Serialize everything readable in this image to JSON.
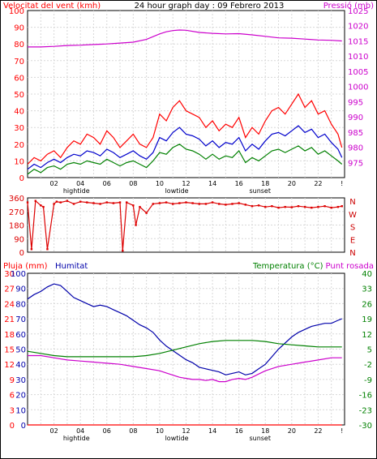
{
  "page_title": "24 hour graph day : 09 Febrero 2013",
  "chart_data": [
    {
      "id": "wind_pressure",
      "type": "line",
      "title": "24 hour graph day : 09 Febrero 2013",
      "left_axis_label": "Velocitat del vent (kmh)",
      "right_axis_label": "Pressió (mb)",
      "left_ylim": [
        0,
        100
      ],
      "left_ticks": [
        "0",
        "10",
        "20",
        "30",
        "40",
        "50",
        "60",
        "70",
        "80",
        "90",
        "100"
      ],
      "right_ylim": [
        970,
        1025
      ],
      "right_ticks": [
        "975",
        "980",
        "985",
        "990",
        "995",
        "1000",
        "1005",
        "1010",
        "1015",
        "1020",
        "1025"
      ],
      "x_ticks": [
        "02",
        "04",
        "06",
        "08",
        "10",
        "12",
        "14",
        "16",
        "18",
        "20",
        "22",
        "!"
      ],
      "event_labels": [
        {
          "hour": 3.7,
          "label": "hightide"
        },
        {
          "hour": 11.3,
          "label": "lowtide"
        },
        {
          "hour": 17.6,
          "label": "sunset"
        }
      ],
      "grid": true,
      "colors": {
        "gust": "#ff0000",
        "avg": "#0000cc",
        "min": "#008000",
        "pressure": "#cc00cc"
      },
      "series": [
        {
          "key": "pressure",
          "axis": "right",
          "x": [
            0,
            1,
            2,
            3,
            4,
            5,
            6,
            7,
            8,
            9,
            10,
            10.5,
            11,
            11.5,
            12,
            13,
            14,
            15,
            16,
            17,
            18,
            19,
            20,
            21,
            22,
            23,
            23.8
          ],
          "values": [
            1013,
            1013,
            1013.2,
            1013.5,
            1013.6,
            1013.8,
            1014,
            1014.3,
            1014.6,
            1015.5,
            1017.3,
            1018,
            1018.4,
            1018.6,
            1018.5,
            1017.8,
            1017.5,
            1017.3,
            1017.4,
            1017,
            1016.5,
            1016,
            1015.9,
            1015.6,
            1015.3,
            1015.2,
            1015
          ]
        },
        {
          "key": "gust",
          "axis": "left",
          "x": [
            0,
            0.5,
            1,
            1.5,
            2,
            2.5,
            3,
            3.5,
            4,
            4.5,
            5,
            5.5,
            6,
            6.5,
            7,
            7.5,
            8,
            8.5,
            9,
            9.5,
            10,
            10.5,
            11,
            11.5,
            12,
            12.5,
            13,
            13.5,
            14,
            14.5,
            15,
            15.5,
            16,
            16.5,
            17,
            17.5,
            18,
            18.5,
            19,
            19.5,
            20,
            20.5,
            21,
            21.5,
            22,
            22.5,
            23,
            23.5,
            23.8
          ],
          "values": [
            8,
            12,
            10,
            14,
            16,
            12,
            18,
            22,
            20,
            26,
            24,
            20,
            28,
            24,
            18,
            22,
            26,
            20,
            18,
            24,
            38,
            34,
            42,
            46,
            40,
            38,
            36,
            30,
            34,
            28,
            32,
            30,
            36,
            24,
            30,
            26,
            34,
            40,
            42,
            38,
            44,
            50,
            42,
            46,
            38,
            40,
            32,
            26,
            18
          ]
        },
        {
          "key": "avg",
          "axis": "left",
          "x": [
            0,
            0.5,
            1,
            1.5,
            2,
            2.5,
            3,
            3.5,
            4,
            4.5,
            5,
            5.5,
            6,
            6.5,
            7,
            7.5,
            8,
            8.5,
            9,
            9.5,
            10,
            10.5,
            11,
            11.5,
            12,
            12.5,
            13,
            13.5,
            14,
            14.5,
            15,
            15.5,
            16,
            16.5,
            17,
            17.5,
            18,
            18.5,
            19,
            19.5,
            20,
            20.5,
            21,
            21.5,
            22,
            22.5,
            23,
            23.5,
            23.8
          ],
          "values": [
            5,
            8,
            6,
            9,
            11,
            9,
            12,
            14,
            13,
            16,
            15,
            13,
            17,
            15,
            12,
            14,
            16,
            13,
            11,
            15,
            24,
            22,
            27,
            30,
            26,
            25,
            23,
            19,
            22,
            18,
            21,
            20,
            24,
            16,
            20,
            17,
            22,
            26,
            27,
            25,
            28,
            31,
            27,
            29,
            24,
            26,
            21,
            17,
            12
          ]
        },
        {
          "key": "min",
          "axis": "left",
          "x": [
            0,
            0.5,
            1,
            1.5,
            2,
            2.5,
            3,
            3.5,
            4,
            4.5,
            5,
            5.5,
            6,
            6.5,
            7,
            7.5,
            8,
            8.5,
            9,
            9.5,
            10,
            10.5,
            11,
            11.5,
            12,
            12.5,
            13,
            13.5,
            14,
            14.5,
            15,
            15.5,
            16,
            16.5,
            17,
            17.5,
            18,
            18.5,
            19,
            19.5,
            20,
            20.5,
            21,
            21.5,
            22,
            22.5,
            23,
            23.5,
            23.8
          ],
          "values": [
            2,
            5,
            3,
            6,
            7,
            5,
            8,
            9,
            8,
            10,
            9,
            8,
            11,
            9,
            7,
            9,
            10,
            8,
            6,
            10,
            15,
            14,
            18,
            20,
            17,
            16,
            14,
            11,
            14,
            11,
            13,
            12,
            16,
            9,
            12,
            10,
            13,
            16,
            17,
            15,
            17,
            19,
            16,
            18,
            14,
            16,
            13,
            10,
            8
          ]
        }
      ]
    },
    {
      "id": "wind_direction",
      "type": "line",
      "left_ylim": [
        0,
        360
      ],
      "left_ticks": [
        "0",
        "90",
        "180",
        "270",
        "360"
      ],
      "right_labels": [
        "N",
        "W",
        "S",
        "E",
        "N"
      ],
      "grid": true,
      "colors": {
        "direction": "#dd0000"
      },
      "series": [
        {
          "key": "direction",
          "x": [
            0,
            0.3,
            0.6,
            1,
            1.2,
            1.5,
            2,
            2.2,
            2.5,
            3,
            3.5,
            4,
            4.5,
            5,
            5.5,
            6,
            6.5,
            7,
            7.2,
            7.5,
            8,
            8.2,
            8.5,
            9,
            9.5,
            10,
            10.5,
            11,
            11.5,
            12,
            12.5,
            13,
            13.5,
            14,
            14.5,
            15,
            15.5,
            16,
            16.5,
            17,
            17.5,
            18,
            18.5,
            19,
            19.5,
            20,
            20.5,
            21,
            21.5,
            22,
            22.5,
            23,
            23.5,
            23.8
          ],
          "values": [
            330,
            20,
            340,
            310,
            300,
            20,
            320,
            335,
            330,
            340,
            320,
            335,
            330,
            325,
            320,
            330,
            325,
            330,
            10,
            330,
            310,
            180,
            300,
            260,
            320,
            325,
            330,
            320,
            325,
            330,
            325,
            320,
            320,
            330,
            320,
            315,
            320,
            325,
            315,
            305,
            310,
            300,
            305,
            295,
            300,
            298,
            305,
            300,
            295,
            300,
            305,
            295,
            300,
            305
          ]
        }
      ]
    },
    {
      "id": "rain_humidity_temp",
      "type": "line",
      "left_axis_label": "Pluja (mm)",
      "left_axis_label2": "Humitat",
      "right_axis_label": "Temperatura (°C)",
      "right_axis_label2": "Punt rosada",
      "left_ticks": [
        "0",
        "3",
        "6",
        "9",
        "12",
        "15",
        "18",
        "21",
        "24",
        "27",
        "30"
      ],
      "left_ticks_humidity": [
        "0",
        "10",
        "20",
        "30",
        "40",
        "50",
        "60",
        "70",
        "80",
        "90",
        "100"
      ],
      "left_ylim": [
        0,
        100
      ],
      "right_ylim": [
        -30,
        40
      ],
      "right_ticks": [
        "-30",
        "-23",
        "-16",
        "-9",
        "-2",
        "5",
        "12",
        "19",
        "26",
        "33",
        "40"
      ],
      "x_ticks": [
        "02",
        "04",
        "06",
        "08",
        "10",
        "12",
        "14",
        "16",
        "18",
        "20",
        "22",
        "!"
      ],
      "event_labels": [
        {
          "hour": 3.7,
          "label": "hightide"
        },
        {
          "hour": 11.3,
          "label": "lowtide"
        },
        {
          "hour": 17.6,
          "label": "sunset"
        }
      ],
      "grid": true,
      "colors": {
        "rain": "#ff0000",
        "humidity": "#0000aa",
        "temperature": "#008000",
        "dewpoint": "#cc00cc"
      },
      "series": [
        {
          "key": "rain",
          "axis": "left",
          "x": [
            0,
            23.8
          ],
          "values": [
            0,
            0
          ]
        },
        {
          "key": "humidity",
          "axis": "left",
          "x": [
            0,
            0.5,
            1,
            1.5,
            2,
            2.5,
            3,
            3.5,
            4,
            4.5,
            5,
            5.5,
            6,
            6.5,
            7,
            7.5,
            8,
            8.5,
            9,
            9.5,
            10,
            10.5,
            11,
            11.5,
            12,
            12.5,
            13,
            13.5,
            14,
            14.5,
            15,
            15.5,
            16,
            16.5,
            17,
            17.5,
            18,
            18.5,
            19,
            19.5,
            20,
            20.5,
            21,
            21.5,
            22,
            22.5,
            23,
            23.5,
            23.8
          ],
          "values": [
            83,
            86,
            88,
            91,
            93,
            92,
            88,
            84,
            82,
            80,
            78,
            79,
            78,
            76,
            74,
            72,
            69,
            66,
            64,
            61,
            56,
            52,
            49,
            46,
            43,
            41,
            38,
            37,
            36,
            35,
            33,
            34,
            35,
            33,
            34,
            37,
            40,
            45,
            50,
            54,
            58,
            61,
            63,
            65,
            66,
            67,
            67,
            69,
            70
          ]
        },
        {
          "key": "temperature",
          "axis": "right",
          "x": [
            0,
            1,
            2,
            3,
            4,
            5,
            6,
            7,
            8,
            9,
            10,
            11,
            12,
            13,
            14,
            15,
            16,
            17,
            18,
            19,
            20,
            21,
            22,
            23,
            23.8
          ],
          "values": [
            4,
            3,
            2,
            1.5,
            1.5,
            1.5,
            1.5,
            1.5,
            1.5,
            2,
            3,
            4.5,
            6,
            7.5,
            8.5,
            9,
            9,
            9,
            8.5,
            7.5,
            7,
            6.5,
            6,
            6,
            6
          ]
        },
        {
          "key": "dewpoint",
          "axis": "right",
          "x": [
            0,
            1,
            2,
            3,
            4,
            5,
            6,
            7,
            8,
            9,
            10,
            10.5,
            11,
            11.5,
            12,
            12.5,
            13,
            13.5,
            14,
            14.5,
            15,
            15.5,
            16,
            16.5,
            17,
            17.5,
            18,
            19,
            20,
            21,
            22,
            23,
            23.8
          ],
          "values": [
            2,
            2,
            1,
            0,
            -0.5,
            -1,
            -1.5,
            -2,
            -3,
            -4,
            -5,
            -6,
            -7,
            -8,
            -8.5,
            -9,
            -9,
            -9.5,
            -9,
            -10,
            -10,
            -9,
            -8.5,
            -9,
            -8,
            -6.5,
            -5,
            -3,
            -2,
            -1,
            0,
            1,
            1
          ]
        }
      ]
    }
  ]
}
